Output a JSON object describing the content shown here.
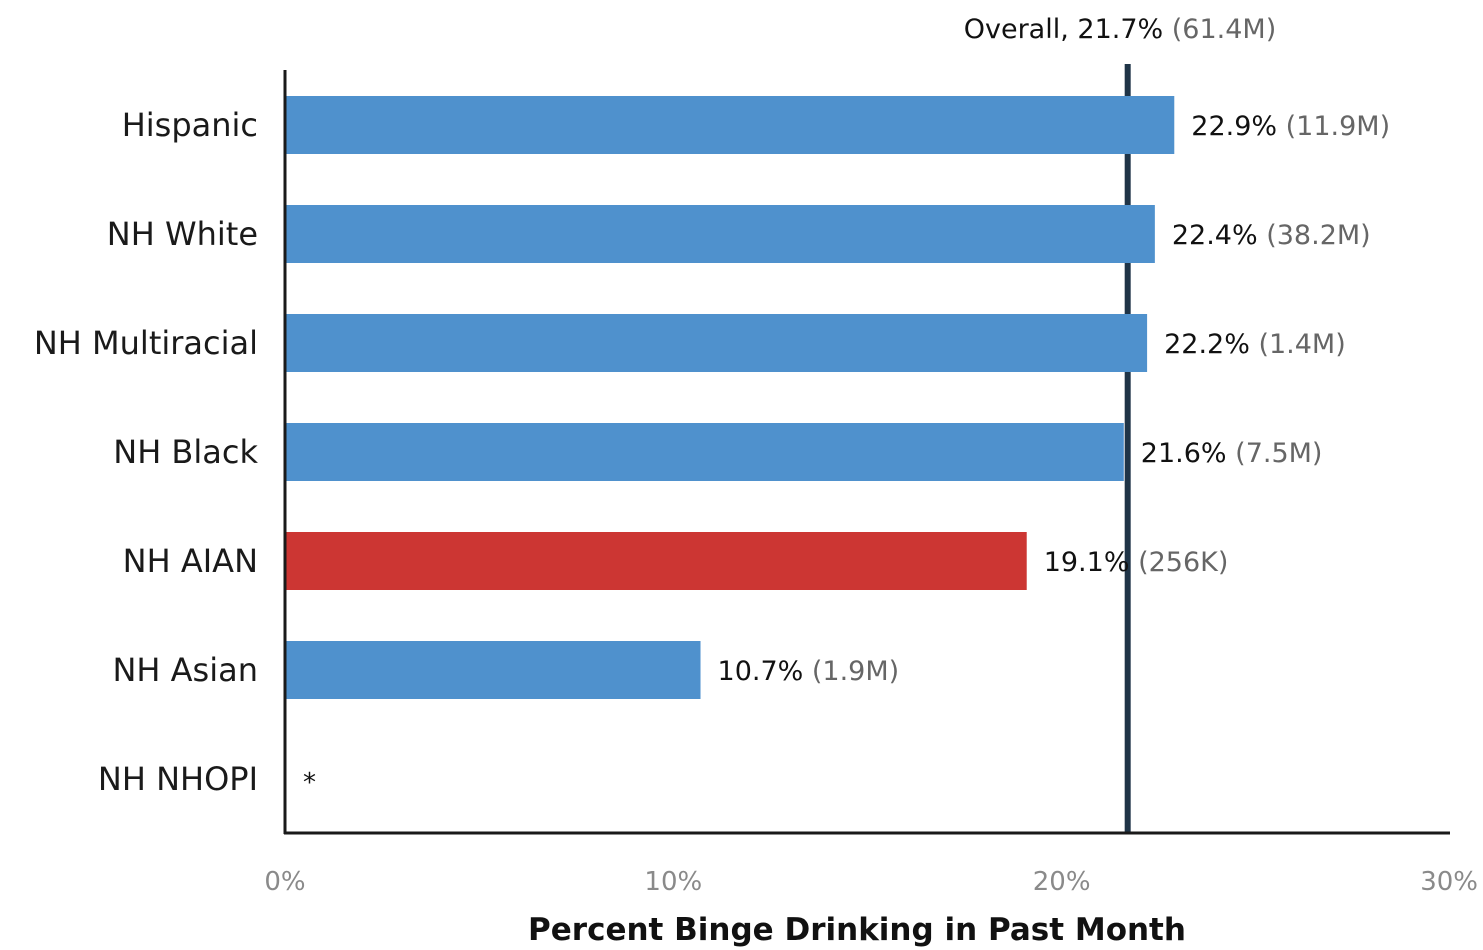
{
  "chart_data": {
    "type": "bar",
    "orientation": "horizontal",
    "categories": [
      "Hispanic",
      "NH White",
      "NH Multiracial",
      "NH Black",
      "NH AIAN",
      "NH Asian",
      "NH NHOPI"
    ],
    "values": [
      22.9,
      22.4,
      22.2,
      21.6,
      19.1,
      10.7,
      null
    ],
    "value_labels": [
      "22.9%",
      "22.4%",
      "22.2%",
      "21.6%",
      "19.1%",
      "10.7%",
      "*"
    ],
    "count_labels": [
      "(11.9M)",
      "(38.2M)",
      "(1.4M)",
      "(7.5M)",
      "(256K)",
      "(1.9M)",
      ""
    ],
    "highlight_category": "NH AIAN",
    "colors": {
      "bar": "#4f91cd",
      "highlight": "#cc3633",
      "reference_line": "#1f3447",
      "axis": "#1a1a1a"
    },
    "reference_line": {
      "value": 21.7,
      "label": "Overall, 21.7%",
      "count_label": "(61.4M)"
    },
    "xlim": [
      0,
      30
    ],
    "xticks": [
      "0%",
      "10%",
      "20%",
      "30%"
    ],
    "xlabel": "Percent Binge Drinking in Past Month",
    "ylabel": "",
    "grid": false,
    "legend": "none"
  }
}
